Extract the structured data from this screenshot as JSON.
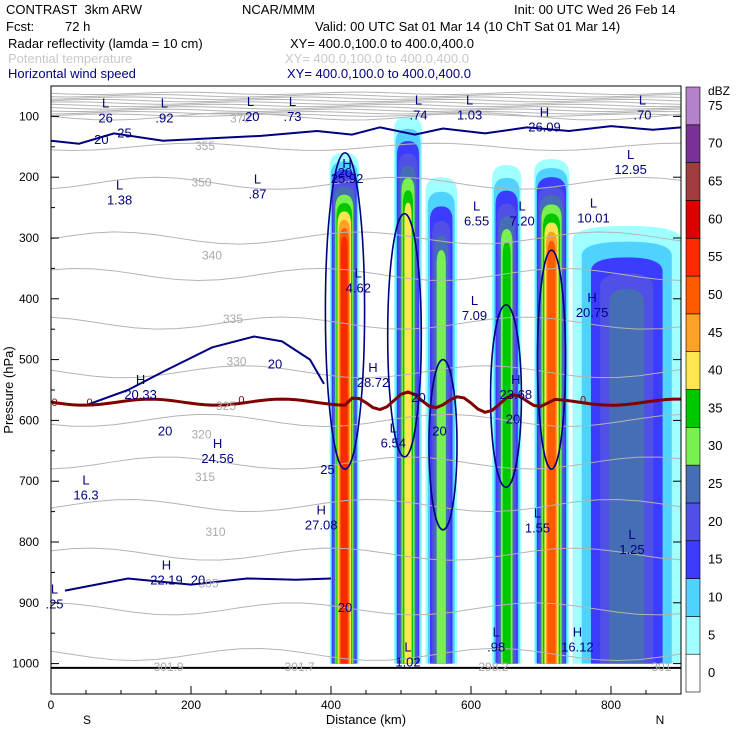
{
  "header": {
    "model": "CONTRAST  3km ARW",
    "institution": "NCAR/MMM",
    "init": "Init: 00 UTC Wed 26 Feb 14",
    "fcst_label": "Fcst:",
    "fcst_value": "72 h",
    "valid": "Valid: 00 UTC Sat 01 Mar 14 (10 ChT Sat 01 Mar 14)",
    "fields": [
      {
        "name": "Radar reflectivity (lamda = 10 cm)",
        "xy": "XY= 400.0,100.0 to 400.0,400.0",
        "color": "#000000"
      },
      {
        "name": "Potential temperature",
        "xy": "XY= 400.0,100.0 to 400.0,400.0",
        "color": "#c8c8c8"
      },
      {
        "name": "Horizontal wind speed",
        "xy": "XY= 400.0,100.0 to 400.0,400.0",
        "color": "#000080"
      }
    ]
  },
  "chart_data": {
    "type": "heatmap",
    "xlabel": "Distance (km)",
    "ylabel": "Pressure (hPa)",
    "xlim": [
      0,
      900
    ],
    "ylim": [
      1050,
      50
    ],
    "x_ticks": [
      "0",
      "200",
      "400",
      "600",
      "800"
    ],
    "y_ticks": [
      "100",
      "200",
      "300",
      "400",
      "500",
      "600",
      "700",
      "800",
      "900",
      "1000"
    ],
    "x_end_labels": {
      "left": "S",
      "right": "N"
    },
    "colorbar": {
      "unit": "dBZ",
      "levels": [
        "0",
        "5",
        "10",
        "15",
        "20",
        "25",
        "30",
        "35",
        "40",
        "45",
        "50",
        "55",
        "60",
        "65",
        "70",
        "75"
      ],
      "colors": [
        "#ffffff",
        "#a0ffff",
        "#50d2ff",
        "#3c3cff",
        "#5050e6",
        "#466eb4",
        "#78f050",
        "#00c800",
        "#ffe650",
        "#ffa028",
        "#ff5a00",
        "#ff2800",
        "#dc0000",
        "#a03c3c",
        "#783296",
        "#b482c8"
      ]
    },
    "cells": [
      {
        "x": [
          398,
          440
        ],
        "p": [
          160,
          1000
        ],
        "peak_dbz": 55
      },
      {
        "x": [
          490,
          530
        ],
        "p": [
          100,
          1000
        ],
        "peak_dbz": 40
      },
      {
        "x": [
          535,
          580
        ],
        "p": [
          200,
          1000
        ],
        "peak_dbz": 30
      },
      {
        "x": [
          630,
          672
        ],
        "p": [
          180,
          1000
        ],
        "peak_dbz": 35
      },
      {
        "x": [
          690,
          740
        ],
        "p": [
          170,
          1000
        ],
        "peak_dbz": 50
      },
      {
        "x": [
          745,
          900
        ],
        "p": [
          280,
          1000
        ],
        "peak_dbz": 25
      }
    ],
    "theta_levels": [
      "370",
      "355",
      "350",
      "340",
      "335",
      "330",
      "325",
      "320",
      "315",
      "310",
      "305",
      "301.9",
      "301.7",
      "298.2",
      "301"
    ],
    "wind_levels": [
      "20",
      "25"
    ],
    "zero_line_label": "0",
    "extrema": [
      {
        "kind": "L",
        "value": "26",
        "x": 78,
        "p": 90
      },
      {
        "kind": "L",
        "value": ".92",
        "x": 162,
        "p": 90
      },
      {
        "kind": "L",
        "value": ".20",
        "x": 285,
        "p": 88
      },
      {
        "kind": "L",
        "value": ".73",
        "x": 345,
        "p": 88
      },
      {
        "kind": "L",
        "value": ".74",
        "x": 525,
        "p": 85
      },
      {
        "kind": "L",
        "value": "1.03",
        "x": 598,
        "p": 85
      },
      {
        "kind": "H",
        "value": "26.09",
        "x": 705,
        "p": 105
      },
      {
        "kind": "L",
        "value": ".70",
        "x": 845,
        "p": 85
      },
      {
        "kind": "L",
        "value": "12.95",
        "x": 828,
        "p": 175
      },
      {
        "kind": "L",
        "value": "1.38",
        "x": 98,
        "p": 225
      },
      {
        "kind": "L",
        "value": ".87",
        "x": 295,
        "p": 215
      },
      {
        "kind": "H",
        "value": "25.92",
        "x": 423,
        "p": 190
      },
      {
        "kind": "L",
        "value": "6.55",
        "x": 608,
        "p": 260
      },
      {
        "kind": "L",
        "value": "7.20",
        "x": 673,
        "p": 260
      },
      {
        "kind": "L",
        "value": "10.01",
        "x": 775,
        "p": 255
      },
      {
        "kind": "L",
        "value": "4.62",
        "x": 439,
        "p": 370
      },
      {
        "kind": "L",
        "value": "7.09",
        "x": 605,
        "p": 415
      },
      {
        "kind": "H",
        "value": "20.75",
        "x": 773,
        "p": 410
      },
      {
        "kind": "H",
        "value": "28.72",
        "x": 460,
        "p": 525
      },
      {
        "kind": "H",
        "value": "20.33",
        "x": 128,
        "p": 545
      },
      {
        "kind": "H",
        "value": "23.68",
        "x": 664,
        "p": 545
      },
      {
        "kind": "L",
        "value": "6.54",
        "x": 489,
        "p": 625
      },
      {
        "kind": "H",
        "value": "24.56",
        "x": 238,
        "p": 650
      },
      {
        "kind": "L",
        "value": "16.3",
        "x": 50,
        "p": 710
      },
      {
        "kind": "H",
        "value": "27.08",
        "x": 386,
        "p": 760
      },
      {
        "kind": "L",
        "value": "1.55",
        "x": 695,
        "p": 765
      },
      {
        "kind": "L",
        "value": "1.25",
        "x": 830,
        "p": 800
      },
      {
        "kind": "H",
        "value": "22.19",
        "x": 165,
        "p": 850
      },
      {
        "kind": "L",
        "value": ".25",
        "x": 5,
        "p": 890
      },
      {
        "kind": "L",
        "value": ".98",
        "x": 636,
        "p": 960
      },
      {
        "kind": "H",
        "value": "16.12",
        "x": 752,
        "p": 960
      },
      {
        "kind": "L",
        "value": "1.02",
        "x": 510,
        "p": 985
      }
    ]
  }
}
